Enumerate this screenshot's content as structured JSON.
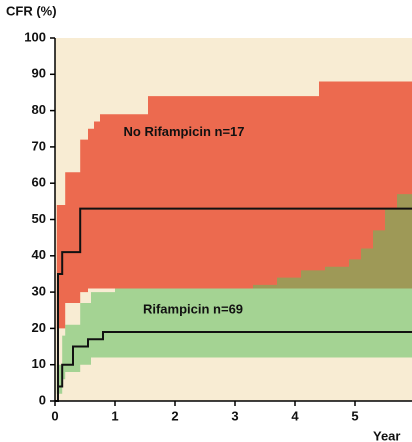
{
  "chart_data": {
    "type": "step",
    "y_label": "CFR (%)",
    "x_label": "Year",
    "xlim": [
      0,
      5.95
    ],
    "xticks": [
      0,
      1,
      2,
      3,
      4,
      5
    ],
    "ylim": [
      0,
      100
    ],
    "yticks": [
      0,
      10,
      20,
      30,
      40,
      50,
      60,
      70,
      80,
      90,
      100
    ],
    "background": "#f8ecd3",
    "series": [
      {
        "name": "No Rifampicin  n=17",
        "color": "#111111",
        "x": [
          0,
          0.05,
          0.12,
          0.42,
          5.95
        ],
        "values": [
          0,
          35,
          41,
          53,
          53
        ],
        "band": {
          "color": "#ec6a4f",
          "x": [
            0.03,
            0.17,
            0.42,
            0.55,
            0.65,
            0.75,
            1.55,
            4.4,
            5.95
          ],
          "upper": [
            54,
            63,
            72,
            75,
            77,
            79,
            84,
            88,
            88
          ],
          "lower": [
            20,
            27,
            30,
            31,
            31,
            31,
            31,
            31,
            31
          ]
        }
      },
      {
        "name": "Rifampicin  n=69",
        "color": "#111111",
        "x": [
          0,
          0.05,
          0.12,
          0.3,
          0.55,
          0.8,
          5.95
        ],
        "values": [
          0,
          4,
          10,
          15,
          17,
          19,
          19
        ],
        "band": {
          "color": "#5fbf5f",
          "x": [
            0.03,
            0.12,
            0.17,
            0.42,
            0.6,
            1,
            3.3,
            3.7,
            4.1,
            4.5,
            4.9,
            5.1,
            5.3,
            5.5,
            5.7,
            5.95
          ],
          "upper": [
            10,
            18,
            21,
            27,
            30,
            31,
            32,
            34,
            36,
            37,
            39,
            42,
            47,
            53,
            57,
            60
          ],
          "lower": [
            2,
            6,
            8,
            10,
            12,
            12,
            12,
            12,
            12,
            12,
            12,
            12,
            12,
            12,
            12,
            12
          ]
        }
      }
    ]
  }
}
